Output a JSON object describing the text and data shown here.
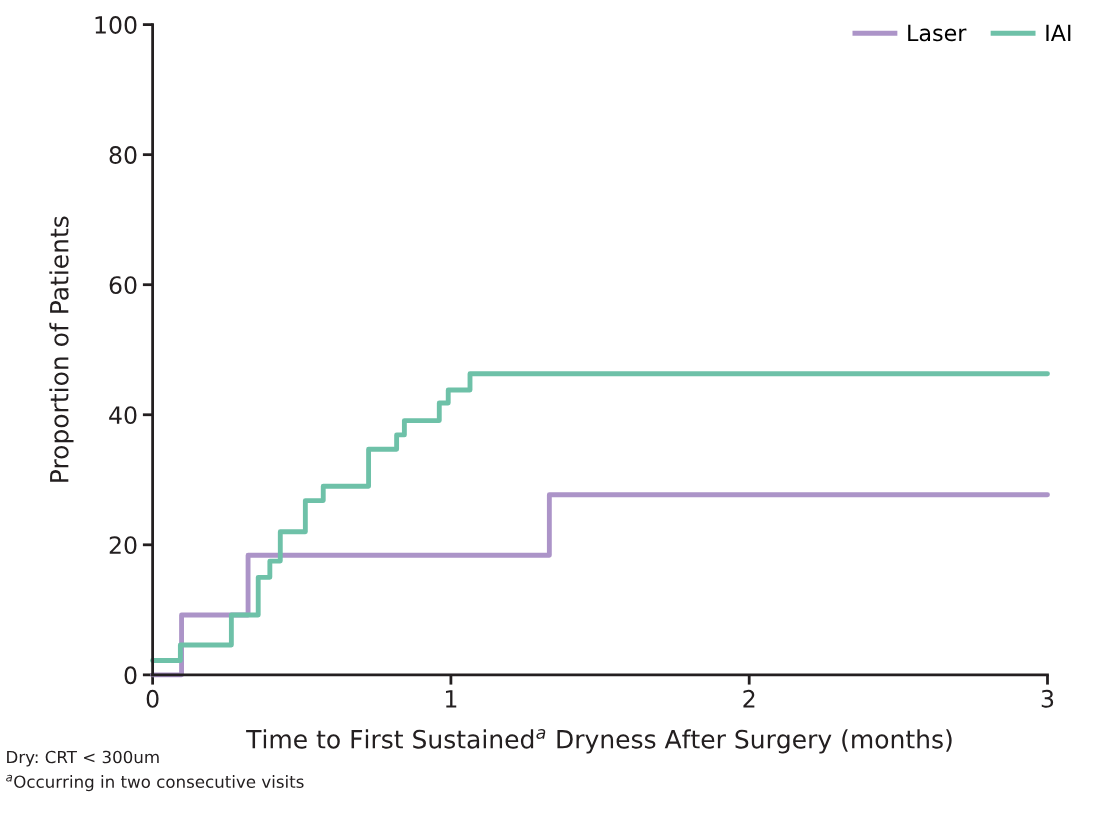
{
  "chart_data": {
    "type": "step",
    "xlabel": "Time to First Sustained$^{a}$ Dryness After Surgery (months)",
    "ylabel": "Proportion of Patients",
    "series": [
      {
        "name": "Laser",
        "color": "#ac94c8",
        "x": [
          0,
          0.097,
          0.32,
          1.33,
          3
        ],
        "values": [
          0,
          9.2,
          18.4,
          27.7,
          27.7
        ]
      },
      {
        "name": "IAI",
        "color": "#6ec1a8",
        "x": [
          0,
          0.093,
          0.264,
          0.354,
          0.393,
          0.428,
          0.512,
          0.572,
          0.724,
          0.818,
          0.844,
          0.961,
          0.991,
          1.064,
          3
        ],
        "values": [
          2.2,
          4.6,
          9.2,
          15.0,
          17.5,
          22.0,
          26.8,
          29.0,
          34.7,
          36.9,
          39.1,
          41.8,
          43.8,
          46.3,
          46.3
        ]
      }
    ],
    "xlim": [
      0,
      3
    ],
    "xticks": [
      0,
      1,
      2,
      3
    ],
    "ylim": [
      0,
      100
    ],
    "yticks": [
      0,
      20,
      40,
      60,
      80,
      100
    ],
    "grid": false,
    "legend": "top right",
    "annotations": [
      "Dry: CRT < 300um",
      "$^{a}$Occurring in two consecutive visits"
    ]
  }
}
